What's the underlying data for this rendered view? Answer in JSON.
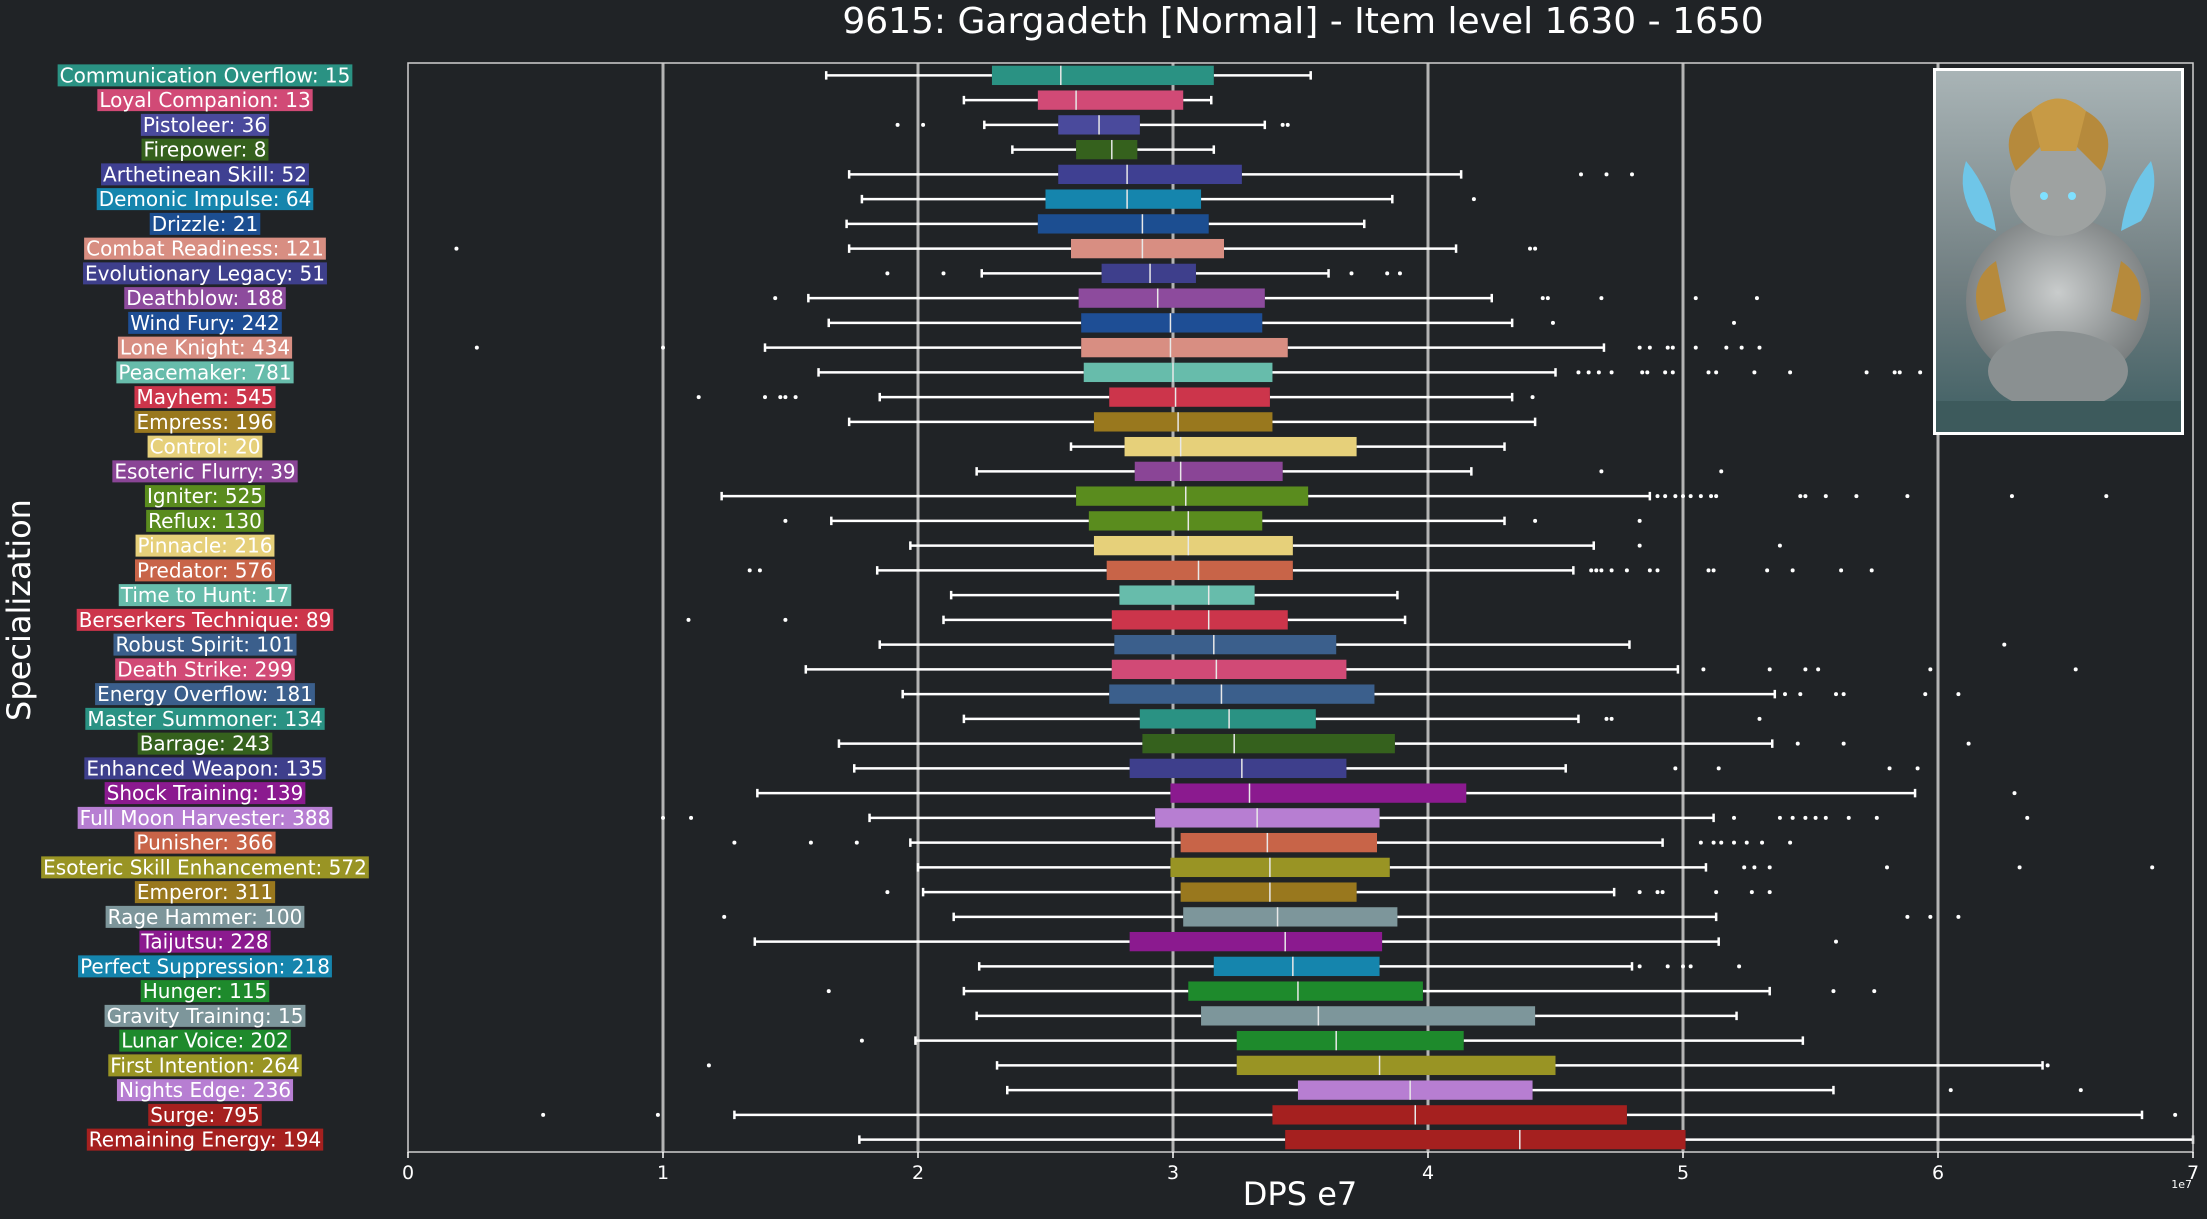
{
  "chart_data": {
    "type": "box",
    "title": "9615: Gargadeth [Normal] - Item level 1630 - 1650",
    "xlabel": "DPS e7",
    "ylabel": "Specialization",
    "x_offset_text": "1e7",
    "xlim": [
      0,
      7
    ],
    "x_ticks": [
      0,
      1,
      2,
      3,
      4,
      5,
      6,
      7
    ],
    "grid": "vertical",
    "orientation": "horizontal",
    "categories": [
      {
        "label": "Communication Overflow: 15",
        "color": "#2a9283",
        "whisker_low": 1.64,
        "q1": 2.29,
        "median": 2.56,
        "q3": 3.16,
        "whisker_high": 3.54,
        "outliers": []
      },
      {
        "label": "Loyal Companion: 13",
        "color": "#d14a76",
        "whisker_low": 2.18,
        "q1": 2.47,
        "median": 2.62,
        "q3": 3.04,
        "whisker_high": 3.15,
        "outliers": []
      },
      {
        "label": "Pistoleer: 36",
        "color": "#4a4a9c",
        "whisker_low": 2.26,
        "q1": 2.55,
        "median": 2.71,
        "q3": 2.87,
        "whisker_high": 3.36,
        "outliers": [
          1.92,
          2.02,
          3.43,
          3.45
        ]
      },
      {
        "label": "Firepower: 8",
        "color": "#35611d",
        "whisker_low": 2.37,
        "q1": 2.62,
        "median": 2.76,
        "q3": 2.86,
        "whisker_high": 3.16,
        "outliers": []
      },
      {
        "label": "Arthetinean Skill: 52",
        "color": "#3f4092",
        "whisker_low": 1.73,
        "q1": 2.55,
        "median": 2.82,
        "q3": 3.27,
        "whisker_high": 4.13,
        "outliers": [
          4.6,
          4.7,
          4.8
        ]
      },
      {
        "label": "Demonic Impulse: 64",
        "color": "#1585ad",
        "whisker_low": 1.78,
        "q1": 2.5,
        "median": 2.82,
        "q3": 3.11,
        "whisker_high": 3.86,
        "outliers": [
          4.18
        ]
      },
      {
        "label": "Drizzle: 21",
        "color": "#1c4e91",
        "whisker_low": 1.72,
        "q1": 2.47,
        "median": 2.88,
        "q3": 3.14,
        "whisker_high": 3.75,
        "outliers": []
      },
      {
        "label": "Combat Readiness: 121",
        "color": "#d88e82",
        "whisker_low": 1.73,
        "q1": 2.6,
        "median": 2.88,
        "q3": 3.2,
        "whisker_high": 4.11,
        "outliers": [
          0.19,
          4.4,
          4.42
        ]
      },
      {
        "label": "Evolutionary Legacy: 51",
        "color": "#3e3f8c",
        "whisker_low": 2.25,
        "q1": 2.72,
        "median": 2.91,
        "q3": 3.09,
        "whisker_high": 3.61,
        "outliers": [
          1.88,
          2.1,
          3.7,
          3.84,
          3.89
        ]
      },
      {
        "label": "Deathblow: 188",
        "color": "#8d4b9d",
        "whisker_low": 1.57,
        "q1": 2.63,
        "median": 2.94,
        "q3": 3.36,
        "whisker_high": 4.25,
        "outliers": [
          1.44,
          4.45,
          4.47,
          4.68,
          5.05,
          5.29
        ]
      },
      {
        "label": "Wind Fury: 242",
        "color": "#1e4e95",
        "whisker_low": 1.65,
        "q1": 2.64,
        "median": 2.99,
        "q3": 3.35,
        "whisker_high": 4.33,
        "outliers": [
          4.49,
          5.2
        ]
      },
      {
        "label": "Lone Knight: 434",
        "color": "#d88e82",
        "whisker_low": 1.4,
        "q1": 2.64,
        "median": 2.99,
        "q3": 3.45,
        "whisker_high": 4.69,
        "outliers": [
          0.27,
          1.0,
          4.83,
          4.87,
          4.94,
          4.96,
          5.05,
          5.17,
          5.23,
          5.3
        ]
      },
      {
        "label": "Peacemaker: 781",
        "color": "#67bcab",
        "whisker_low": 1.61,
        "q1": 2.65,
        "median": 3.0,
        "q3": 3.39,
        "whisker_high": 4.5,
        "outliers": [
          4.59,
          4.63,
          4.67,
          4.72,
          4.84,
          4.86,
          4.93,
          4.96,
          5.1,
          5.13,
          5.28,
          5.42,
          5.72,
          5.83,
          5.85,
          5.93
        ]
      },
      {
        "label": "Mayhem: 545",
        "color": "#cc354b",
        "whisker_low": 1.85,
        "q1": 2.75,
        "median": 3.01,
        "q3": 3.38,
        "whisker_high": 4.33,
        "outliers": [
          1.14,
          1.4,
          1.46,
          1.48,
          1.52,
          4.41
        ]
      },
      {
        "label": "Empress: 196",
        "color": "#99781e",
        "whisker_low": 1.73,
        "q1": 2.69,
        "median": 3.02,
        "q3": 3.39,
        "whisker_high": 4.42,
        "outliers": []
      },
      {
        "label": "Control: 20",
        "color": "#e6d07a",
        "whisker_low": 2.6,
        "q1": 2.81,
        "median": 3.03,
        "q3": 3.72,
        "whisker_high": 4.3,
        "outliers": []
      },
      {
        "label": "Esoteric Flurry: 39",
        "color": "#8a4596",
        "whisker_low": 2.23,
        "q1": 2.85,
        "median": 3.03,
        "q3": 3.43,
        "whisker_high": 4.17,
        "outliers": [
          4.68,
          5.15
        ]
      },
      {
        "label": "Igniter: 525",
        "color": "#5a8c1e",
        "whisker_low": 1.23,
        "q1": 2.62,
        "median": 3.05,
        "q3": 3.53,
        "whisker_high": 4.87,
        "outliers": [
          4.9,
          4.93,
          4.97,
          5.0,
          5.03,
          5.07,
          5.11,
          5.13,
          5.46,
          5.48,
          5.56,
          5.68,
          5.88,
          6.29,
          6.66
        ]
      },
      {
        "label": "Reflux: 130",
        "color": "#5a8c1e",
        "whisker_low": 1.66,
        "q1": 2.67,
        "median": 3.06,
        "q3": 3.35,
        "whisker_high": 4.3,
        "outliers": [
          1.48,
          4.42,
          4.83
        ]
      },
      {
        "label": "Pinnacle: 216",
        "color": "#e6d07a",
        "whisker_low": 1.97,
        "q1": 2.69,
        "median": 3.06,
        "q3": 3.47,
        "whisker_high": 4.65,
        "outliers": [
          4.83,
          5.38
        ]
      },
      {
        "label": "Predator: 576",
        "color": "#c86448",
        "whisker_low": 1.84,
        "q1": 2.74,
        "median": 3.1,
        "q3": 3.47,
        "whisker_high": 4.57,
        "outliers": [
          1.34,
          1.38,
          4.64,
          4.66,
          4.68,
          4.72,
          4.78,
          4.87,
          4.9,
          5.1,
          5.12,
          5.33,
          5.43,
          5.62,
          5.74
        ]
      },
      {
        "label": "Time to Hunt: 17",
        "color": "#67bcab",
        "whisker_low": 2.13,
        "q1": 2.79,
        "median": 3.14,
        "q3": 3.32,
        "whisker_high": 3.88,
        "outliers": []
      },
      {
        "label": "Berserkers Technique: 89",
        "color": "#cc354b",
        "whisker_low": 2.1,
        "q1": 2.76,
        "median": 3.14,
        "q3": 3.45,
        "whisker_high": 3.91,
        "outliers": [
          1.1,
          1.48
        ]
      },
      {
        "label": "Robust Spirit: 101",
        "color": "#3b5f8c",
        "whisker_low": 1.85,
        "q1": 2.77,
        "median": 3.16,
        "q3": 3.64,
        "whisker_high": 4.79,
        "outliers": [
          6.26
        ]
      },
      {
        "label": "Death Strike: 299",
        "color": "#d14a76",
        "whisker_low": 1.56,
        "q1": 2.76,
        "median": 3.17,
        "q3": 3.68,
        "whisker_high": 4.98,
        "outliers": [
          5.08,
          5.34,
          5.48,
          5.53,
          5.97,
          6.54
        ]
      },
      {
        "label": "Energy Overflow: 181",
        "color": "#3b5f8c",
        "whisker_low": 1.94,
        "q1": 2.75,
        "median": 3.19,
        "q3": 3.79,
        "whisker_high": 5.36,
        "outliers": [
          5.4,
          5.46,
          5.6,
          5.63,
          5.95,
          6.08
        ]
      },
      {
        "label": "Master Summoner: 134",
        "color": "#2a9283",
        "whisker_low": 2.18,
        "q1": 2.87,
        "median": 3.22,
        "q3": 3.56,
        "whisker_high": 4.59,
        "outliers": [
          4.7,
          4.72,
          5.3
        ]
      },
      {
        "label": "Barrage: 243",
        "color": "#35611d",
        "whisker_low": 1.69,
        "q1": 2.88,
        "median": 3.24,
        "q3": 3.87,
        "whisker_high": 5.35,
        "outliers": [
          5.45,
          5.63,
          6.12
        ]
      },
      {
        "label": "Enhanced Weapon: 135",
        "color": "#3e3f8c",
        "whisker_low": 1.75,
        "q1": 2.83,
        "median": 3.27,
        "q3": 3.68,
        "whisker_high": 4.54,
        "outliers": [
          4.97,
          5.14,
          5.81,
          5.92
        ]
      },
      {
        "label": "Shock Training: 139",
        "color": "#8b1a8f",
        "whisker_low": 1.37,
        "q1": 2.99,
        "median": 3.3,
        "q3": 4.15,
        "whisker_high": 5.91,
        "outliers": [
          6.3
        ]
      },
      {
        "label": "Full Moon Harvester: 388",
        "color": "#b77ed2",
        "whisker_low": 1.81,
        "q1": 2.93,
        "median": 3.33,
        "q3": 3.81,
        "whisker_high": 5.12,
        "outliers": [
          1.0,
          1.11,
          5.2,
          5.38,
          5.43,
          5.48,
          5.52,
          5.56,
          5.65,
          5.76,
          6.35
        ]
      },
      {
        "label": "Punisher: 366",
        "color": "#c86448",
        "whisker_low": 1.97,
        "q1": 3.03,
        "median": 3.37,
        "q3": 3.8,
        "whisker_high": 4.92,
        "outliers": [
          1.28,
          1.58,
          1.76,
          5.07,
          5.12,
          5.15,
          5.2,
          5.25,
          5.31,
          5.42
        ]
      },
      {
        "label": "Esoteric Skill Enhancement: 572",
        "color": "#999424",
        "whisker_low": 2.0,
        "q1": 2.99,
        "median": 3.38,
        "q3": 3.85,
        "whisker_high": 5.09,
        "outliers": [
          5.24,
          5.28,
          5.34,
          5.8,
          6.32,
          6.84
        ]
      },
      {
        "label": "Emperor: 311",
        "color": "#99781e",
        "whisker_low": 2.02,
        "q1": 3.03,
        "median": 3.38,
        "q3": 3.72,
        "whisker_high": 4.73,
        "outliers": [
          1.88,
          4.83,
          4.9,
          4.92,
          5.13,
          5.27,
          5.34
        ]
      },
      {
        "label": "Rage Hammer: 100",
        "color": "#7d969b",
        "whisker_low": 2.14,
        "q1": 3.04,
        "median": 3.41,
        "q3": 3.88,
        "whisker_high": 5.13,
        "outliers": [
          1.24,
          5.88,
          5.97,
          6.08
        ]
      },
      {
        "label": "Taijutsu: 228",
        "color": "#8b1a8f",
        "whisker_low": 1.36,
        "q1": 2.83,
        "median": 3.44,
        "q3": 3.82,
        "whisker_high": 5.14,
        "outliers": [
          5.6
        ]
      },
      {
        "label": "Perfect Suppression: 218",
        "color": "#1585ad",
        "whisker_low": 2.24,
        "q1": 3.16,
        "median": 3.47,
        "q3": 3.81,
        "whisker_high": 4.8,
        "outliers": [
          4.83,
          4.94,
          5.0,
          5.03,
          5.22
        ]
      },
      {
        "label": "Hunger: 115",
        "color": "#1e8a2c",
        "whisker_low": 2.18,
        "q1": 3.06,
        "median": 3.49,
        "q3": 3.98,
        "whisker_high": 5.34,
        "outliers": [
          1.65,
          5.59,
          5.75
        ]
      },
      {
        "label": "Gravity Training: 15",
        "color": "#7d969b",
        "whisker_low": 2.23,
        "q1": 3.11,
        "median": 3.57,
        "q3": 4.42,
        "whisker_high": 5.21,
        "outliers": []
      },
      {
        "label": "Lunar Voice: 202",
        "color": "#1e8a2c",
        "whisker_low": 1.99,
        "q1": 3.25,
        "median": 3.64,
        "q3": 4.14,
        "whisker_high": 5.47,
        "outliers": [
          1.78
        ]
      },
      {
        "label": "First Intention: 264",
        "color": "#999424",
        "whisker_low": 2.31,
        "q1": 3.25,
        "median": 3.81,
        "q3": 4.5,
        "whisker_high": 6.41,
        "outliers": [
          1.18,
          6.43
        ]
      },
      {
        "label": "Nights Edge: 236",
        "color": "#b77ed2",
        "whisker_low": 2.35,
        "q1": 3.49,
        "median": 3.93,
        "q3": 4.41,
        "whisker_high": 5.59,
        "outliers": [
          6.05,
          6.56
        ]
      },
      {
        "label": "Surge: 795",
        "color": "#a5201f",
        "whisker_low": 1.28,
        "q1": 3.39,
        "median": 3.95,
        "q3": 4.78,
        "whisker_high": 6.8,
        "outliers": [
          0.53,
          0.98,
          6.93
        ]
      },
      {
        "label": "Remaining Energy: 194",
        "color": "#a5201f",
        "whisker_low": 1.77,
        "q1": 3.44,
        "median": 4.36,
        "q3": 5.01,
        "whisker_high": 7.0,
        "outliers": []
      }
    ]
  },
  "colors": {
    "background": "#202326",
    "grid": "#b4b4b4",
    "text": "#ffffff",
    "whisker": "#ffffff"
  },
  "portrait": {
    "icon": "boss-portrait-image"
  }
}
